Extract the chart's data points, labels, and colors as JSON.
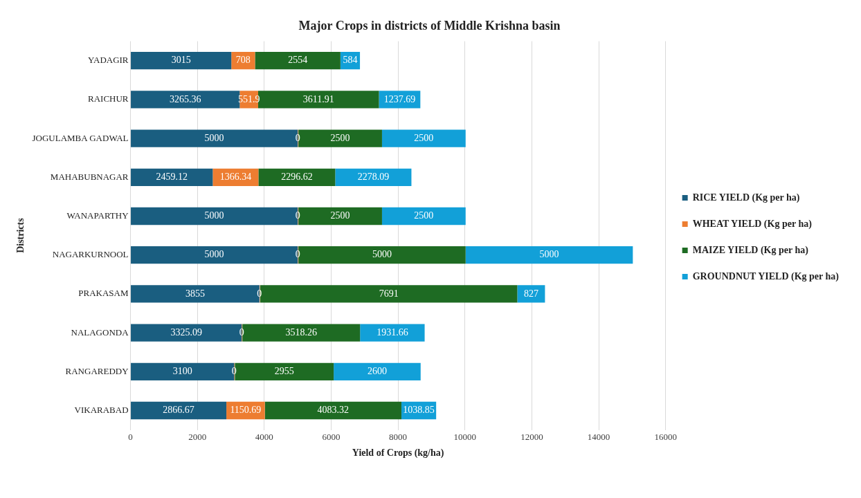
{
  "chart_data": {
    "type": "bar",
    "orientation": "horizontal",
    "stacked": true,
    "title": "Major Crops in districts of Middle Krishna basin",
    "xlabel": "Yield of Crops (kg/ha)",
    "ylabel": "Districts",
    "categories": [
      "YADAGIR",
      "RAICHUR",
      "JOGULAMBA GADWAL",
      "MAHABUBNAGAR",
      "WANAPARTHY",
      "NAGARKURNOOL",
      "PRAKASAM",
      "NALAGONDA",
      "RANGAREDDY",
      "VIKARABAD"
    ],
    "series": [
      {
        "name": "RICE YIELD (Kg per ha)",
        "color": "#1a5e80",
        "values": [
          3015,
          3265.36,
          5000,
          2459.12,
          5000,
          5000,
          3855,
          3325.09,
          3100,
          2866.67
        ]
      },
      {
        "name": "WHEAT YIELD (Kg per ha)",
        "color": "#ed7d31",
        "values": [
          708,
          551.9,
          0,
          1366.34,
          0,
          0,
          0,
          0,
          0,
          1150.69
        ]
      },
      {
        "name": "MAIZE YIELD (Kg per ha)",
        "color": "#1e6b23",
        "values": [
          2554,
          3611.91,
          2500,
          2296.62,
          2500,
          5000,
          7691,
          3518.26,
          2955,
          4083.32
        ]
      },
      {
        "name": "GROUNDNUT YIELD (Kg per ha)",
        "color": "#12a0d8",
        "values": [
          584,
          1237.69,
          2500,
          2278.09,
          2500,
          5000,
          827,
          1931.66,
          2600,
          1038.85
        ]
      }
    ],
    "xlim": [
      0,
      16000
    ],
    "xticks": [
      0,
      2000,
      4000,
      6000,
      8000,
      10000,
      12000,
      14000,
      16000
    ],
    "grid": "x",
    "legend": "right",
    "data_labels": true
  }
}
